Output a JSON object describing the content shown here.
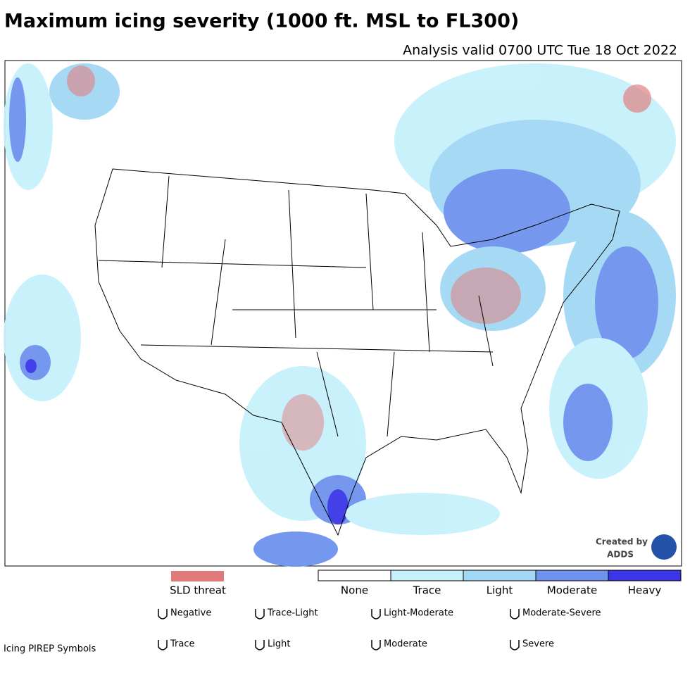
{
  "header": {
    "title": "Maximum icing severity (1000 ft. MSL to FL300)",
    "subtitle": "Analysis valid 0700 UTC Tue 18 Oct 2022"
  },
  "legend": {
    "sld_label": "SLD threat",
    "sld_color": "#e07a7a",
    "levels": [
      {
        "label": "None",
        "color": "#ffffff"
      },
      {
        "label": "Trace",
        "color": "#c6f1fb"
      },
      {
        "label": "Light",
        "color": "#a2d8f4"
      },
      {
        "label": "Moderate",
        "color": "#6e92ee"
      },
      {
        "label": "Heavy",
        "color": "#3a36e6"
      }
    ]
  },
  "pirep": {
    "title": "Icing PIREP Symbols",
    "symbols": [
      {
        "label": "Negative"
      },
      {
        "label": "Trace-Light"
      },
      {
        "label": "Light-Moderate"
      },
      {
        "label": "Moderate-Severe"
      },
      {
        "label": "Trace"
      },
      {
        "label": "Light"
      },
      {
        "label": "Moderate"
      },
      {
        "label": "Severe"
      }
    ]
  },
  "credit": {
    "line1": "Created by",
    "line2": "ADDS"
  }
}
